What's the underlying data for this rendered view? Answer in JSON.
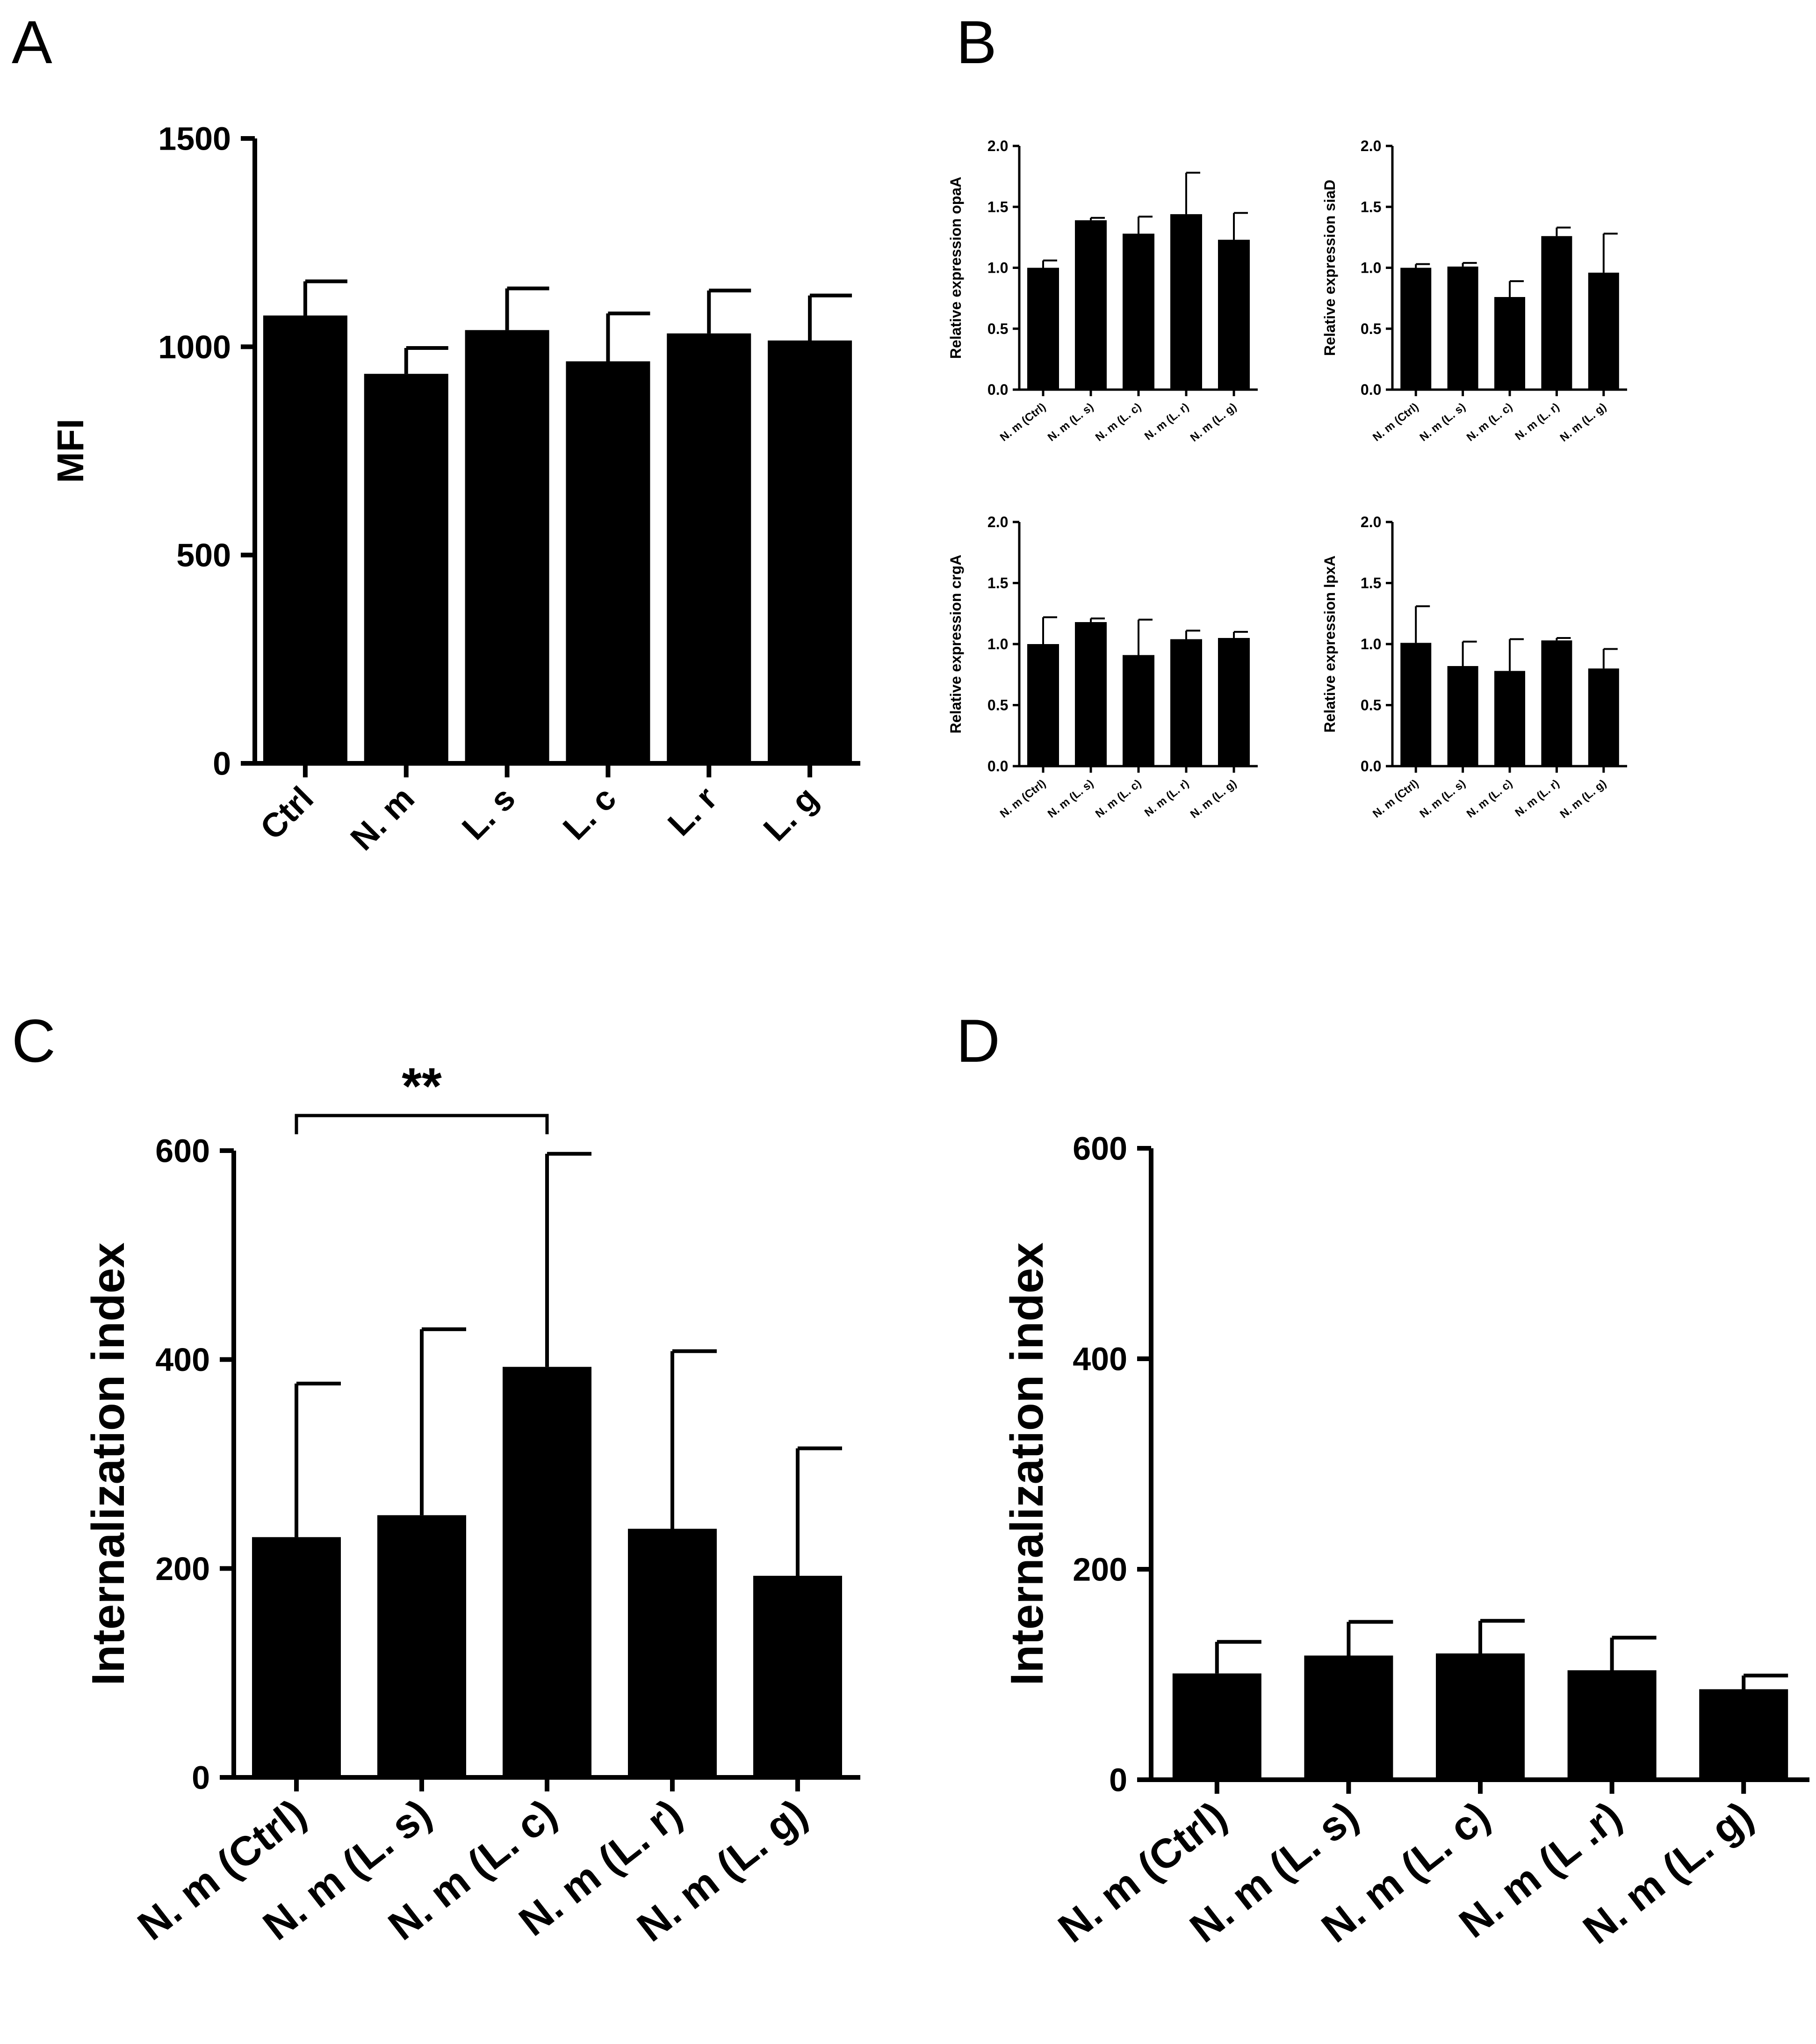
{
  "colors": {
    "bar": "#000000",
    "axis": "#000000",
    "background": "#ffffff"
  },
  "panel_letters": {
    "a": "A",
    "b": "B",
    "c": "C",
    "d": "D"
  },
  "chart_data": [
    {
      "id": "A",
      "type": "bar",
      "title": "",
      "xlabel": "",
      "ylabel": "MFI",
      "categories": [
        "Ctrl",
        "N. m",
        "L. s",
        "L. c",
        "L. r",
        "L. g"
      ],
      "values": [
        1075,
        935,
        1040,
        965,
        1032,
        1015
      ],
      "errors": [
        82,
        62,
        100,
        115,
        103,
        108
      ],
      "ylim": [
        0,
        1500
      ],
      "yticks": [
        0,
        500,
        1000,
        1500
      ],
      "ytick_labels": [
        "0",
        "500",
        "1000",
        "1500"
      ]
    },
    {
      "id": "B1",
      "type": "bar",
      "title": "",
      "xlabel": "",
      "ylabel": "Relative expression opaA",
      "categories": [
        "N. m (Ctrl)",
        "N. m (L. s)",
        "N. m (L. c)",
        "N. m (L. r)",
        "N. m (L. g)"
      ],
      "values": [
        1.0,
        1.39,
        1.28,
        1.44,
        1.23
      ],
      "errors": [
        0.06,
        0.02,
        0.14,
        0.34,
        0.22
      ],
      "ylim": [
        0,
        2.0
      ],
      "yticks": [
        0,
        0.5,
        1.0,
        1.5,
        2.0
      ],
      "ytick_labels": [
        "0.0",
        "0.5",
        "1.0",
        "1.5",
        "2.0"
      ]
    },
    {
      "id": "B2",
      "type": "bar",
      "title": "",
      "xlabel": "",
      "ylabel": "Relative expression siaD",
      "categories": [
        "N. m (Ctrl)",
        "N. m (L. s)",
        "N. m (L. c)",
        "N. m (L. r)",
        "N. m (L. g)"
      ],
      "values": [
        1.0,
        1.01,
        0.76,
        1.26,
        0.96
      ],
      "errors": [
        0.03,
        0.03,
        0.13,
        0.07,
        0.32
      ],
      "ylim": [
        0,
        2.0
      ],
      "yticks": [
        0,
        0.5,
        1.0,
        1.5,
        2.0
      ],
      "ytick_labels": [
        "0.0",
        "0.5",
        "1.0",
        "1.5",
        "2.0"
      ]
    },
    {
      "id": "B3",
      "type": "bar",
      "title": "",
      "xlabel": "",
      "ylabel": "Relative expression crgA",
      "categories": [
        "N. m (Ctrl)",
        "N. m (L. s)",
        "N. m (L. c)",
        "N. m (L. r)",
        "N. m (L. g)"
      ],
      "values": [
        1.0,
        1.18,
        0.91,
        1.04,
        1.05
      ],
      "errors": [
        0.22,
        0.03,
        0.29,
        0.07,
        0.05
      ],
      "ylim": [
        0,
        2.0
      ],
      "yticks": [
        0,
        0.5,
        1.0,
        1.5,
        2.0
      ],
      "ytick_labels": [
        "0.0",
        "0.5",
        "1.0",
        "1.5",
        "2.0"
      ]
    },
    {
      "id": "B4",
      "type": "bar",
      "title": "",
      "xlabel": "",
      "ylabel": "Relative expression lpxA",
      "categories": [
        "N. m (Ctrl)",
        "N. m (L. s)",
        "N. m (L. c)",
        "N. m (L. r)",
        "N. m (L. g)"
      ],
      "values": [
        1.01,
        0.82,
        0.78,
        1.03,
        0.8
      ],
      "errors": [
        0.3,
        0.2,
        0.26,
        0.02,
        0.16
      ],
      "ylim": [
        0,
        2.0
      ],
      "yticks": [
        0,
        0.5,
        1.0,
        1.5,
        2.0
      ],
      "ytick_labels": [
        "0.0",
        "0.5",
        "1.0",
        "1.5",
        "2.0"
      ]
    },
    {
      "id": "C",
      "type": "bar",
      "title": "",
      "xlabel": "",
      "ylabel": "Internalization index",
      "categories": [
        "N. m (Ctrl)",
        "N. m (L. s)",
        "N. m (L. c)",
        "N. m (L. r)",
        "N. m (L. g)"
      ],
      "values": [
        230,
        251,
        393,
        238,
        193
      ],
      "errors": [
        147,
        178,
        204,
        170,
        122
      ],
      "ylim": [
        0,
        600
      ],
      "yticks": [
        0,
        200,
        400,
        600
      ],
      "ytick_labels": [
        "0",
        "200",
        "400",
        "600"
      ],
      "significance": {
        "from": 0,
        "to": 2,
        "label": "**"
      }
    },
    {
      "id": "D",
      "type": "bar",
      "title": "",
      "xlabel": "",
      "ylabel": "Internalization index",
      "categories": [
        "N. m (Ctrl)",
        "N. m (L. s)",
        "N. m (L. c)",
        "N. m (L .r)",
        "N. m (L. g)"
      ],
      "values": [
        101,
        118,
        120,
        104,
        86
      ],
      "errors": [
        30,
        32,
        31,
        31,
        13
      ],
      "ylim": [
        0,
        600
      ],
      "yticks": [
        0,
        200,
        400,
        600
      ],
      "ytick_labels": [
        "0",
        "200",
        "400",
        "600"
      ]
    }
  ]
}
